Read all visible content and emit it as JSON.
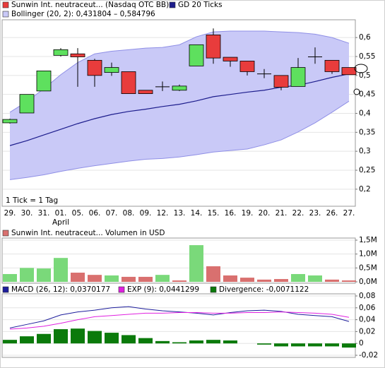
{
  "chart_data": [
    {
      "type": "candlestick",
      "categories": [
        "29.",
        "30.",
        "31.",
        "01.",
        "05.",
        "06.",
        "07.",
        "08.",
        "09.",
        "12.",
        "13.",
        "14.",
        "15.",
        "16.",
        "19.",
        "20.",
        "21.",
        "22.",
        "23.",
        "26.",
        "27."
      ],
      "annotations": [
        {
          "text": "April",
          "category": "01."
        }
      ],
      "note": "1 Tick = 1 Tag",
      "series": [
        {
          "name": "Sunwin Int. neutraceut... (Nasdaq OTC BB)",
          "type": "candlestick",
          "color": "#e83c3c",
          "up_color": "#5ee05e",
          "down_color": "#e83c3c",
          "open": [
            0.375,
            0.401,
            0.459,
            0.553,
            0.557,
            0.54,
            0.508,
            0.51,
            0.461,
            0.47,
            0.461,
            0.525,
            0.607,
            0.548,
            0.538,
            0.504,
            0.5,
            0.471,
            0.549,
            0.54,
            0.521
          ],
          "high": [
            0.386,
            0.45,
            0.512,
            0.572,
            0.572,
            0.544,
            0.534,
            0.51,
            0.461,
            0.484,
            0.476,
            0.581,
            0.624,
            0.548,
            0.538,
            0.517,
            0.5,
            0.546,
            0.574,
            0.54,
            0.521
          ],
          "low": [
            0.373,
            0.401,
            0.459,
            0.55,
            0.47,
            0.47,
            0.499,
            0.452,
            0.452,
            0.459,
            0.459,
            0.525,
            0.531,
            0.523,
            0.5,
            0.493,
            0.461,
            0.471,
            0.531,
            0.504,
            0.502
          ],
          "close": [
            0.384,
            0.45,
            0.512,
            0.568,
            0.549,
            0.5,
            0.521,
            0.452,
            0.452,
            0.47,
            0.472,
            0.581,
            0.546,
            0.538,
            0.51,
            0.504,
            0.469,
            0.521,
            0.549,
            0.51,
            0.502
          ]
        },
        {
          "name": "Bollinger (20, 2): 0,431804 – 0,584796",
          "type": "band",
          "color": "#c9c9f7",
          "edge_color": "#8f8fe6",
          "upper": [
            0.403,
            0.431,
            0.465,
            0.502,
            0.534,
            0.557,
            0.564,
            0.568,
            0.572,
            0.574,
            0.581,
            0.602,
            0.615,
            0.617,
            0.617,
            0.617,
            0.615,
            0.613,
            0.609,
            0.6,
            0.585
          ],
          "lower": [
            0.225,
            0.231,
            0.238,
            0.247,
            0.255,
            0.262,
            0.268,
            0.274,
            0.279,
            0.281,
            0.285,
            0.291,
            0.298,
            0.302,
            0.306,
            0.317,
            0.33,
            0.351,
            0.375,
            0.403,
            0.432
          ]
        },
        {
          "name": "GD 20 Ticks",
          "type": "line",
          "color": "#1c1c8c",
          "values": [
            0.315,
            0.328,
            0.343,
            0.358,
            0.373,
            0.386,
            0.397,
            0.405,
            0.411,
            0.418,
            0.424,
            0.433,
            0.444,
            0.45,
            0.456,
            0.461,
            0.469,
            0.474,
            0.484,
            0.495,
            0.504
          ]
        }
      ],
      "ylim": [
        0.155,
        0.645
      ],
      "yticks": [
        {
          "value": 0.6,
          "label": "0,6"
        },
        {
          "value": 0.55,
          "label": "0,55"
        },
        {
          "value": 0.5,
          "label": "0,5"
        },
        {
          "value": 0.45,
          "label": "0,45"
        },
        {
          "value": 0.4,
          "label": "0,4"
        },
        {
          "value": 0.35,
          "label": "0,35"
        },
        {
          "value": 0.3,
          "label": "0,3"
        },
        {
          "value": 0.25,
          "label": "0,25"
        },
        {
          "value": 0.2,
          "label": "0,2"
        }
      ],
      "grid": true
    },
    {
      "type": "bar",
      "series": [
        {
          "name": "Sunwin Int. neutraceut... Volumen in USD",
          "color": "#d9706f",
          "values": [
            280000,
            500000,
            480000,
            860000,
            330000,
            250000,
            230000,
            180000,
            180000,
            250000,
            50000,
            1320000,
            560000,
            230000,
            150000,
            80000,
            100000,
            280000,
            230000,
            80000,
            50000
          ],
          "colors": [
            "#7ad97a",
            "#7ad97a",
            "#7ad97a",
            "#7ad97a",
            "#d9706f",
            "#d9706f",
            "#7ad97a",
            "#d9706f",
            "#d9706f",
            "#7ad97a",
            "#d9706f",
            "#7ad97a",
            "#d9706f",
            "#d9706f",
            "#d9706f",
            "#d9706f",
            "#d9706f",
            "#7ad97a",
            "#7ad97a",
            "#d9706f",
            "#d9706f"
          ]
        }
      ],
      "ylim": [
        0,
        1500000
      ],
      "yticks": [
        {
          "value": 1500000,
          "label": "1,5M"
        },
        {
          "value": 1000000,
          "label": "1,0M"
        },
        {
          "value": 500000,
          "label": "0,5M"
        },
        {
          "value": 0,
          "label": "0,0M"
        }
      ],
      "grid": true
    },
    {
      "type": "macd",
      "series": [
        {
          "name": "MACD (26, 12): 0,0370177",
          "type": "line",
          "color": "#1d1d9c",
          "values": [
            0.026,
            0.032,
            0.038,
            0.048,
            0.053,
            0.056,
            0.06,
            0.062,
            0.058,
            0.055,
            0.053,
            0.051,
            0.048,
            0.052,
            0.055,
            0.056,
            0.054,
            0.049,
            0.047,
            0.045,
            0.037
          ]
        },
        {
          "name": "EXP (9): 0,0441299",
          "type": "line",
          "color": "#e020e0",
          "values": [
            0.024,
            0.026,
            0.029,
            0.034,
            0.04,
            0.045,
            0.047,
            0.049,
            0.051,
            0.051,
            0.052,
            0.052,
            0.051,
            0.051,
            0.052,
            0.052,
            0.053,
            0.052,
            0.051,
            0.049,
            0.044
          ]
        },
        {
          "name": "Divergence: -0,0071122",
          "type": "bar",
          "color": "#0b7a0b",
          "values": [
            0.006,
            0.012,
            0.016,
            0.024,
            0.025,
            0.021,
            0.018,
            0.014,
            0.009,
            0.004,
            0.002,
            0.005,
            0.006,
            0.005,
            0,
            -0.002,
            -0.005,
            -0.005,
            -0.005,
            -0.005,
            -0.007
          ]
        }
      ],
      "ylim": [
        -0.02,
        0.08
      ],
      "yticks": [
        {
          "value": 0.08,
          "label": "0,08"
        },
        {
          "value": 0.06,
          "label": "0,06"
        },
        {
          "value": 0.04,
          "label": "0,04"
        },
        {
          "value": 0.02,
          "label": "0,02"
        },
        0,
        {
          "value": -0.02,
          "label": "-0,02"
        }
      ],
      "grid": true
    }
  ]
}
